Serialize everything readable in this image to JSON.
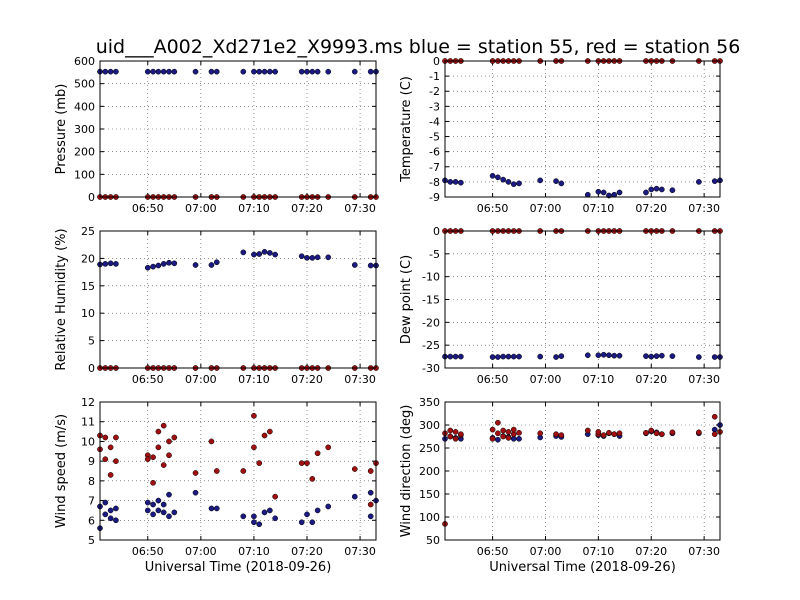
{
  "figure": {
    "title": "uid___A002_Xd271e2_X9993.ms blue = station 55,  red = station 56"
  },
  "colors": {
    "station_55": "#1a1a80",
    "station_56": "#a01010",
    "marker_edge": "#000000"
  },
  "chart_data": [
    {
      "type": "scatter",
      "id": "pressure",
      "ylabel": "Pressure (mb)",
      "xlabel": "",
      "xlim": [
        "06:41",
        "07:33"
      ],
      "ylim": [
        0,
        600
      ],
      "yticks": [
        0,
        100,
        200,
        300,
        400,
        500,
        600
      ],
      "xticks": [
        "06:50",
        "07:00",
        "07:10",
        "07:20",
        "07:30"
      ],
      "grid": true,
      "series": [
        {
          "station": "55",
          "x": [
            "06:41",
            "06:42",
            "06:43",
            "06:44",
            "06:50",
            "06:51",
            "06:52",
            "06:53",
            "06:54",
            "06:55",
            "06:59",
            "07:02",
            "07:03",
            "07:08",
            "07:10",
            "07:11",
            "07:12",
            "07:13",
            "07:14",
            "07:19",
            "07:20",
            "07:21",
            "07:22",
            "07:24",
            "07:29",
            "07:32",
            "07:33"
          ],
          "y": [
            553,
            553,
            553,
            553,
            553,
            553,
            553,
            553,
            553,
            553,
            553,
            553,
            553,
            553,
            553,
            553,
            553,
            553,
            553,
            553,
            553,
            553,
            553,
            553,
            553,
            553,
            553
          ]
        },
        {
          "station": "56",
          "x": [
            "06:41",
            "06:42",
            "06:43",
            "06:44",
            "06:50",
            "06:51",
            "06:52",
            "06:53",
            "06:54",
            "06:55",
            "06:59",
            "07:02",
            "07:03",
            "07:08",
            "07:10",
            "07:11",
            "07:12",
            "07:13",
            "07:14",
            "07:19",
            "07:20",
            "07:21",
            "07:22",
            "07:24",
            "07:29",
            "07:32",
            "07:33"
          ],
          "y": [
            0,
            0,
            0,
            0,
            0,
            0,
            0,
            0,
            0,
            0,
            0,
            0,
            0,
            0,
            0,
            0,
            0,
            0,
            0,
            0,
            0,
            0,
            0,
            0,
            0,
            0,
            0
          ]
        }
      ]
    },
    {
      "type": "scatter",
      "id": "temperature",
      "ylabel": "Temperature (C)",
      "xlabel": "",
      "xlim": [
        "06:41",
        "07:33"
      ],
      "ylim": [
        -9,
        0
      ],
      "yticks": [
        -9,
        -8,
        -7,
        -6,
        -5,
        -4,
        -3,
        -2,
        -1,
        0
      ],
      "xticks": [
        "06:50",
        "07:00",
        "07:10",
        "07:20",
        "07:30"
      ],
      "grid": true,
      "series": [
        {
          "station": "55",
          "x": [
            "06:41",
            "06:42",
            "06:43",
            "06:44",
            "06:50",
            "06:51",
            "06:52",
            "06:53",
            "06:54",
            "06:55",
            "06:59",
            "07:02",
            "07:03",
            "07:08",
            "07:10",
            "07:11",
            "07:12",
            "07:13",
            "07:14",
            "07:19",
            "07:20",
            "07:21",
            "07:22",
            "07:24",
            "07:29",
            "07:32",
            "07:33"
          ],
          "y": [
            -7.9,
            -8.0,
            -8.0,
            -8.05,
            -7.6,
            -7.7,
            -7.85,
            -8.0,
            -8.15,
            -8.1,
            -7.9,
            -7.95,
            -8.1,
            -8.85,
            -8.65,
            -8.7,
            -8.9,
            -8.85,
            -8.7,
            -8.7,
            -8.5,
            -8.45,
            -8.5,
            -8.55,
            -8.0,
            -7.95,
            -7.9
          ]
        },
        {
          "station": "56",
          "x": [
            "06:41",
            "06:42",
            "06:43",
            "06:44",
            "06:50",
            "06:51",
            "06:52",
            "06:53",
            "06:54",
            "06:55",
            "06:59",
            "07:02",
            "07:03",
            "07:08",
            "07:10",
            "07:11",
            "07:12",
            "07:13",
            "07:14",
            "07:19",
            "07:20",
            "07:21",
            "07:22",
            "07:24",
            "07:29",
            "07:32",
            "07:33"
          ],
          "y": [
            0,
            0,
            0,
            0,
            0,
            0,
            0,
            0,
            0,
            0,
            0,
            0,
            0,
            0,
            0,
            0,
            0,
            0,
            0,
            0,
            0,
            0,
            0,
            0,
            0,
            0,
            0
          ]
        }
      ]
    },
    {
      "type": "scatter",
      "id": "humidity",
      "ylabel": "Relative Humidity (%)",
      "xlabel": "",
      "xlim": [
        "06:41",
        "07:33"
      ],
      "ylim": [
        0,
        25
      ],
      "yticks": [
        0,
        5,
        10,
        15,
        20,
        25
      ],
      "xticks": [
        "06:50",
        "07:00",
        "07:10",
        "07:20",
        "07:30"
      ],
      "grid": true,
      "series": [
        {
          "station": "55",
          "x": [
            "06:41",
            "06:42",
            "06:43",
            "06:44",
            "06:50",
            "06:51",
            "06:52",
            "06:53",
            "06:54",
            "06:55",
            "06:59",
            "07:02",
            "07:03",
            "07:08",
            "07:10",
            "07:11",
            "07:12",
            "07:13",
            "07:14",
            "07:19",
            "07:20",
            "07:21",
            "07:22",
            "07:24",
            "07:29",
            "07:32",
            "07:33"
          ],
          "y": [
            18.9,
            19.0,
            19.1,
            19.0,
            18.3,
            18.5,
            18.7,
            19.0,
            19.2,
            19.1,
            18.8,
            18.8,
            19.3,
            21.1,
            20.7,
            20.8,
            21.2,
            21.0,
            20.7,
            20.4,
            20.1,
            20.1,
            20.2,
            20.2,
            18.8,
            18.7,
            18.7
          ]
        },
        {
          "station": "56",
          "x": [
            "06:41",
            "06:42",
            "06:43",
            "06:44",
            "06:50",
            "06:51",
            "06:52",
            "06:53",
            "06:54",
            "06:55",
            "06:59",
            "07:02",
            "07:03",
            "07:08",
            "07:10",
            "07:11",
            "07:12",
            "07:13",
            "07:14",
            "07:19",
            "07:20",
            "07:21",
            "07:22",
            "07:24",
            "07:29",
            "07:32",
            "07:33"
          ],
          "y": [
            0,
            0,
            0,
            0,
            0,
            0,
            0,
            0,
            0,
            0,
            0,
            0,
            0,
            0,
            0,
            0,
            0,
            0,
            0,
            0,
            0,
            0,
            0,
            0,
            0,
            0,
            0
          ]
        }
      ]
    },
    {
      "type": "scatter",
      "id": "dewpoint",
      "ylabel": "Dew point (C)",
      "xlabel": "",
      "xlim": [
        "06:41",
        "07:33"
      ],
      "ylim": [
        -30,
        0
      ],
      "yticks": [
        -30,
        -25,
        -20,
        -15,
        -10,
        -5,
        0
      ],
      "xticks": [
        "06:50",
        "07:00",
        "07:10",
        "07:20",
        "07:30"
      ],
      "grid": true,
      "series": [
        {
          "station": "55",
          "x": [
            "06:41",
            "06:42",
            "06:43",
            "06:44",
            "06:50",
            "06:51",
            "06:52",
            "06:53",
            "06:54",
            "06:55",
            "06:59",
            "07:02",
            "07:03",
            "07:08",
            "07:10",
            "07:11",
            "07:12",
            "07:13",
            "07:14",
            "07:19",
            "07:20",
            "07:21",
            "07:22",
            "07:24",
            "07:29",
            "07:32",
            "07:33"
          ],
          "y": [
            -27.5,
            -27.5,
            -27.5,
            -27.5,
            -27.6,
            -27.6,
            -27.5,
            -27.5,
            -27.5,
            -27.5,
            -27.5,
            -27.6,
            -27.4,
            -27.2,
            -27.2,
            -27.1,
            -27.2,
            -27.3,
            -27.3,
            -27.4,
            -27.5,
            -27.4,
            -27.3,
            -27.4,
            -27.6,
            -27.6,
            -27.6
          ]
        },
        {
          "station": "56",
          "x": [
            "06:41",
            "06:42",
            "06:43",
            "06:44",
            "06:50",
            "06:51",
            "06:52",
            "06:53",
            "06:54",
            "06:55",
            "06:59",
            "07:02",
            "07:03",
            "07:08",
            "07:10",
            "07:11",
            "07:12",
            "07:13",
            "07:14",
            "07:19",
            "07:20",
            "07:21",
            "07:22",
            "07:24",
            "07:29",
            "07:32",
            "07:33"
          ],
          "y": [
            0,
            0,
            0,
            0,
            0,
            0,
            0,
            0,
            0,
            0,
            0,
            0,
            0,
            0,
            0,
            0,
            0,
            0,
            0,
            0,
            0,
            0,
            0,
            0,
            0,
            0,
            0
          ]
        }
      ]
    },
    {
      "type": "scatter",
      "id": "windspeed",
      "ylabel": "Wind speed (m/s)",
      "xlabel": "Universal Time (2018-09-26)",
      "xlim": [
        "06:41",
        "07:33"
      ],
      "ylim": [
        5,
        12
      ],
      "yticks": [
        5,
        6,
        7,
        8,
        9,
        10,
        11,
        12
      ],
      "xticks": [
        "06:50",
        "07:00",
        "07:10",
        "07:20",
        "07:30"
      ],
      "grid": true,
      "series": [
        {
          "station": "55",
          "x": [
            "06:41",
            "06:41",
            "06:42",
            "06:42",
            "06:43",
            "06:43",
            "06:44",
            "06:44",
            "06:50",
            "06:50",
            "06:51",
            "06:51",
            "06:52",
            "06:52",
            "06:53",
            "06:53",
            "06:54",
            "06:54",
            "06:55",
            "06:59",
            "07:02",
            "07:03",
            "07:08",
            "07:10",
            "07:10",
            "07:11",
            "07:12",
            "07:13",
            "07:14",
            "07:19",
            "07:20",
            "07:21",
            "07:22",
            "07:24",
            "07:29",
            "07:32",
            "07:32",
            "07:33"
          ],
          "y": [
            5.6,
            6.7,
            6.3,
            6.9,
            6.1,
            6.5,
            6.0,
            6.6,
            6.9,
            6.5,
            6.8,
            6.3,
            7.0,
            6.5,
            6.4,
            6.8,
            6.2,
            7.3,
            6.4,
            7.4,
            6.6,
            6.6,
            6.2,
            5.9,
            6.2,
            5.8,
            6.4,
            6.5,
            6.1,
            5.9,
            6.3,
            5.9,
            6.5,
            6.7,
            7.2,
            7.4,
            6.2,
            7.0
          ]
        },
        {
          "station": "56",
          "x": [
            "06:41",
            "06:41",
            "06:42",
            "06:42",
            "06:43",
            "06:43",
            "06:44",
            "06:44",
            "06:50",
            "06:50",
            "06:51",
            "06:51",
            "06:52",
            "06:52",
            "06:53",
            "06:53",
            "06:54",
            "06:54",
            "06:55",
            "06:59",
            "07:02",
            "07:03",
            "07:08",
            "07:10",
            "07:10",
            "07:11",
            "07:12",
            "07:13",
            "07:14",
            "07:19",
            "07:20",
            "07:21",
            "07:22",
            "07:24",
            "07:29",
            "07:32",
            "07:32",
            "07:33"
          ],
          "y": [
            10.3,
            9.6,
            9.1,
            10.2,
            8.3,
            9.7,
            9.0,
            10.2,
            9.3,
            9.1,
            7.9,
            9.2,
            10.5,
            9.7,
            8.8,
            10.8,
            9.3,
            10.0,
            10.2,
            8.4,
            10.0,
            8.5,
            8.5,
            11.3,
            9.7,
            8.9,
            10.3,
            10.5,
            7.2,
            8.9,
            8.9,
            8.1,
            9.4,
            9.7,
            8.6,
            6.8,
            8.5,
            8.9
          ]
        }
      ]
    },
    {
      "type": "scatter",
      "id": "winddirection",
      "ylabel": "Wind direction (deg)",
      "xlabel": "Universal Time (2018-09-26)",
      "xlim": [
        "06:41",
        "07:33"
      ],
      "ylim": [
        50,
        350
      ],
      "yticks": [
        50,
        100,
        150,
        200,
        250,
        300,
        350
      ],
      "xticks": [
        "06:50",
        "07:00",
        "07:10",
        "07:20",
        "07:30"
      ],
      "grid": true,
      "series": [
        {
          "station": "55",
          "x": [
            "06:41",
            "06:42",
            "06:43",
            "06:44",
            "06:50",
            "06:51",
            "06:52",
            "06:53",
            "06:54",
            "06:55",
            "06:59",
            "07:02",
            "07:03",
            "07:08",
            "07:10",
            "07:11",
            "07:12",
            "07:13",
            "07:14",
            "07:19",
            "07:20",
            "07:21",
            "07:22",
            "07:24",
            "07:29",
            "07:32",
            "07:33"
          ],
          "y": [
            270,
            275,
            272,
            270,
            272,
            268,
            276,
            274,
            270,
            270,
            273,
            276,
            274,
            280,
            278,
            276,
            282,
            280,
            276,
            282,
            286,
            284,
            280,
            282,
            282,
            290,
            300
          ]
        },
        {
          "station": "56",
          "x": [
            "06:41",
            "06:41",
            "06:42",
            "06:42",
            "06:43",
            "06:43",
            "06:44",
            "06:44",
            "06:50",
            "06:50",
            "06:51",
            "06:51",
            "06:52",
            "06:52",
            "06:53",
            "06:53",
            "06:54",
            "06:54",
            "06:55",
            "06:59",
            "07:02",
            "07:03",
            "07:08",
            "07:10",
            "07:10",
            "07:11",
            "07:12",
            "07:13",
            "07:14",
            "07:19",
            "07:20",
            "07:21",
            "07:22",
            "07:24",
            "07:29",
            "07:32",
            "07:32",
            "07:33"
          ],
          "y": [
            85,
            282,
            275,
            288,
            270,
            285,
            278,
            280,
            290,
            270,
            305,
            282,
            275,
            288,
            272,
            285,
            280,
            290,
            283,
            282,
            280,
            278,
            288,
            280,
            285,
            278,
            283,
            280,
            282,
            283,
            288,
            282,
            280,
            284,
            284,
            318,
            280,
            285
          ]
        }
      ]
    }
  ]
}
